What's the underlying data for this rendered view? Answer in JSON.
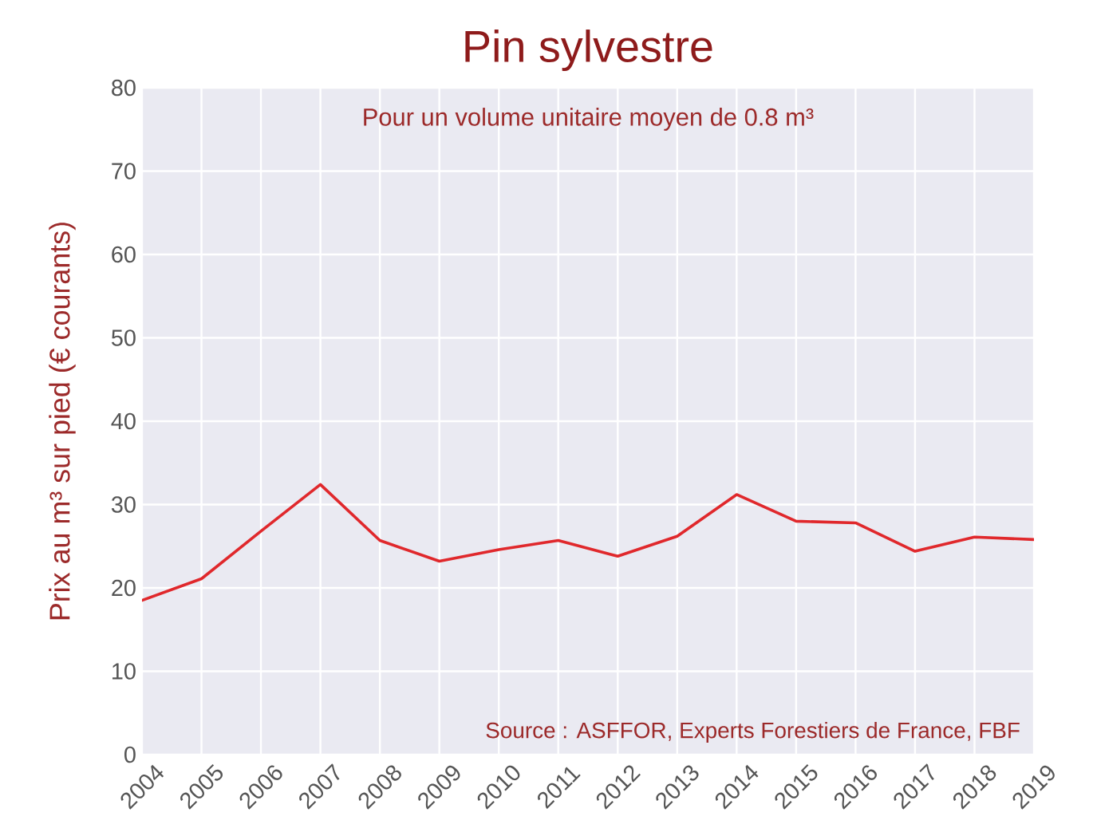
{
  "chart_data": {
    "type": "line",
    "title": "Pin sylvestre",
    "subtitle": "Pour un volume unitaire moyen de 0.8 m³",
    "ylabel": "Prix au m³ sur pied (€ courants)",
    "annotations": [
      "Source : ASFFOR, Experts Forestiers de France, FBF"
    ],
    "x": [
      2004,
      2005,
      2006,
      2007,
      2008,
      2009,
      2010,
      2011,
      2012,
      2013,
      2014,
      2015,
      2016,
      2017,
      2018,
      2019
    ],
    "values": [
      18.5,
      21.1,
      26.8,
      32.4,
      25.7,
      23.2,
      24.6,
      25.7,
      23.8,
      26.2,
      31.2,
      28.0,
      27.8,
      24.4,
      26.1,
      25.8
    ],
    "color": "#e0282c",
    "xlim": [
      2004,
      2019
    ],
    "ylim": [
      0,
      80
    ],
    "xticks": [
      2004,
      2005,
      2006,
      2007,
      2008,
      2009,
      2010,
      2011,
      2012,
      2013,
      2014,
      2015,
      2016,
      2017,
      2018,
      2019
    ],
    "yticks": [
      0,
      10,
      20,
      30,
      40,
      50,
      60,
      70,
      80
    ],
    "grid": true
  }
}
